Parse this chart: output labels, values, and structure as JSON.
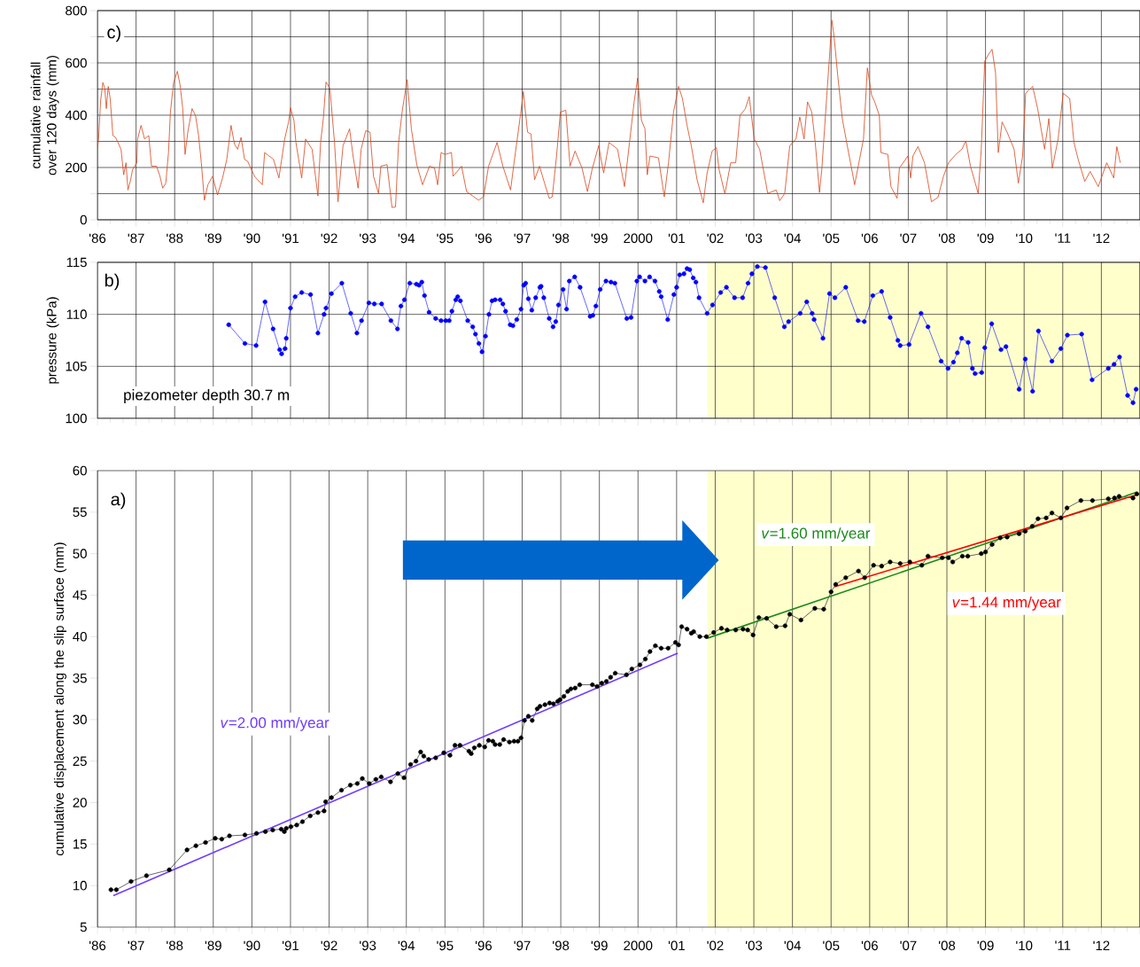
{
  "chart_data": [
    {
      "type": "line",
      "ylabel": "cumulative rainfall over 120 days (mm)",
      "annotations": [
        "c)"
      ],
      "grid": true,
      "xlim": [
        1986,
        2013
      ],
      "ylim": [
        0,
        800
      ],
      "yticks": [
        0,
        {
          "value": 100,
          "label": null
        },
        200,
        {
          "value": 300,
          "label": null
        },
        400,
        {
          "value": 500,
          "label": null
        },
        600,
        {
          "value": 700,
          "label": null
        },
        800
      ],
      "xticks": [
        {
          "value": 1986,
          "label": "'86"
        },
        {
          "value": 1987,
          "label": "'87"
        },
        {
          "value": 1988,
          "label": "'88"
        },
        {
          "value": 1989,
          "label": "'89"
        },
        {
          "value": 1990,
          "label": "'90"
        },
        {
          "value": 1991,
          "label": "'91"
        },
        {
          "value": 1992,
          "label": "'92"
        },
        {
          "value": 1993,
          "label": "'93"
        },
        {
          "value": 1994,
          "label": "'94"
        },
        {
          "value": 1995,
          "label": "'95"
        },
        {
          "value": 1996,
          "label": "'96"
        },
        {
          "value": 1997,
          "label": "'97"
        },
        {
          "value": 1998,
          "label": "'98"
        },
        {
          "value": 1999,
          "label": "'99"
        },
        {
          "value": 2000,
          "label": "2000"
        },
        {
          "value": 2001,
          "label": "'01"
        },
        {
          "value": 2002,
          "label": "'02"
        },
        {
          "value": 2003,
          "label": "'03"
        },
        {
          "value": 2004,
          "label": "'04"
        },
        {
          "value": 2005,
          "label": "'05"
        },
        {
          "value": 2006,
          "label": "'06"
        },
        {
          "value": 2007,
          "label": "'07"
        },
        {
          "value": 2008,
          "label": "'08"
        },
        {
          "value": 2009,
          "label": "'09"
        },
        {
          "value": 2010,
          "label": "'10"
        },
        {
          "value": 2011,
          "label": "'11"
        },
        {
          "value": 2012,
          "label": "'12"
        },
        {
          "value": 2013,
          "label": null
        }
      ],
      "series": [
        {
          "color": "#d9441a",
          "x": [
            1986.0,
            1986.03,
            1986.08,
            1986.14,
            1986.19,
            1986.23,
            1986.28,
            1986.33,
            1986.4,
            1986.47,
            1986.53,
            1986.61,
            1986.68,
            1986.74,
            1986.79,
            1986.86,
            1986.91,
            1987.02,
            1987.04,
            1987.13,
            1987.22,
            1987.33,
            1987.4,
            1987.53,
            1987.62,
            1987.69,
            1987.77,
            1987.84,
            1987.89,
            1987.97,
            1988.07,
            1988.14,
            1988.21,
            1988.27,
            1988.34,
            1988.45,
            1988.54,
            1988.62,
            1988.69,
            1988.77,
            1988.86,
            1988.98,
            1989.11,
            1989.24,
            1989.35,
            1989.46,
            1989.55,
            1989.63,
            1989.72,
            1989.81,
            1989.89,
            1990.07,
            1990.27,
            1990.33,
            1990.56,
            1990.7,
            1990.85,
            1990.95,
            1991.0,
            1991.09,
            1991.14,
            1991.29,
            1991.39,
            1991.56,
            1991.71,
            1991.78,
            1991.85,
            1991.92,
            1992.02,
            1992.14,
            1992.23,
            1992.36,
            1992.53,
            1992.62,
            1992.75,
            1992.83,
            1992.95,
            1993.06,
            1993.15,
            1993.28,
            1993.34,
            1993.5,
            1993.63,
            1993.72,
            1993.8,
            1993.89,
            1994.02,
            1994.13,
            1994.27,
            1994.42,
            1994.6,
            1994.73,
            1994.81,
            1994.9,
            1995.0,
            1995.17,
            1995.21,
            1995.43,
            1995.56,
            1995.87,
            1996.0,
            1996.13,
            1996.35,
            1996.5,
            1996.7,
            1996.79,
            1996.96,
            1997.03,
            1997.14,
            1997.23,
            1997.32,
            1997.45,
            1997.58,
            1997.7,
            1997.78,
            1997.89,
            1997.99,
            1998.13,
            1998.24,
            1998.37,
            1998.55,
            1998.69,
            1998.81,
            1998.98,
            1999.11,
            1999.25,
            1999.47,
            1999.65,
            1999.78,
            1999.9,
            1999.99,
            2000.09,
            2000.18,
            2000.24,
            2000.31,
            2000.53,
            2000.68,
            2000.79,
            2000.92,
            2001.05,
            2001.15,
            2001.27,
            2001.38,
            2001.53,
            2001.69,
            2001.79,
            2001.92,
            2002.03,
            2002.1,
            2002.25,
            2002.4,
            2002.53,
            2002.64,
            2002.78,
            2002.88,
            2003.01,
            2003.15,
            2003.36,
            2003.58,
            2003.67,
            2003.8,
            2003.93,
            2004.09,
            2004.19,
            2004.3,
            2004.39,
            2004.5,
            2004.59,
            2004.7,
            2004.76,
            2004.89,
            2004.96,
            2005.02,
            2005.08,
            2005.17,
            2005.29,
            2005.42,
            2005.52,
            2005.61,
            2005.72,
            2005.84,
            2005.94,
            2006.05,
            2006.13,
            2006.25,
            2006.29,
            2006.47,
            2006.55,
            2006.71,
            2006.77,
            2006.99,
            2007.06,
            2007.12,
            2007.25,
            2007.42,
            2007.6,
            2007.77,
            2007.91,
            2008.04,
            2008.23,
            2008.39,
            2008.49,
            2008.61,
            2008.81,
            2008.89,
            2008.98,
            2009.08,
            2009.17,
            2009.26,
            2009.33,
            2009.43,
            2009.56,
            2009.74,
            2009.85,
            2009.96,
            2010.04,
            2010.22,
            2010.35,
            2010.53,
            2010.64,
            2010.73,
            2010.88,
            2011.01,
            2011.18,
            2011.29,
            2011.4,
            2011.57,
            2011.71,
            2011.92,
            2012.14,
            2012.32,
            2012.4,
            2012.49
          ],
          "values": [
            276,
            309,
            451,
            525,
            503,
            425,
            510,
            464,
            322,
            315,
            296,
            270,
            172,
            218,
            114,
            153,
            192,
            218,
            309,
            361,
            309,
            322,
            205,
            205,
            166,
            121,
            140,
            257,
            412,
            523,
            568,
            516,
            425,
            250,
            335,
            425,
            399,
            322,
            218,
            75,
            134,
            166,
            95,
            160,
            231,
            361,
            289,
            270,
            315,
            231,
            224,
            166,
            134,
            257,
            231,
            160,
            309,
            374,
            428,
            380,
            296,
            160,
            309,
            270,
            91,
            296,
            387,
            527,
            503,
            296,
            69,
            283,
            348,
            244,
            121,
            270,
            341,
            335,
            166,
            101,
            205,
            211,
            47,
            49,
            296,
            412,
            536,
            348,
            211,
            134,
            205,
            198,
            134,
            257,
            250,
            257,
            166,
            205,
            108,
            75,
            88,
            205,
            296,
            205,
            114,
            218,
            406,
            490,
            335,
            328,
            153,
            205,
            140,
            82,
            88,
            244,
            412,
            419,
            205,
            263,
            198,
            108,
            192,
            283,
            179,
            296,
            270,
            127,
            296,
            451,
            542,
            380,
            348,
            172,
            244,
            237,
            88,
            218,
            412,
            510,
            464,
            361,
            283,
            153,
            65,
            179,
            263,
            276,
            192,
            99,
            218,
            218,
            399,
            425,
            471,
            309,
            270,
            101,
            114,
            73,
            101,
            283,
            309,
            393,
            309,
            451,
            412,
            296,
            104,
            192,
            477,
            626,
            763,
            698,
            555,
            387,
            283,
            205,
            134,
            218,
            309,
            581,
            477,
            451,
            399,
            257,
            250,
            127,
            82,
            198,
            244,
            160,
            244,
            280,
            218,
            69,
            86,
            166,
            218,
            250,
            270,
            302,
            205,
            101,
            270,
            607,
            633,
            652,
            562,
            257,
            374,
            335,
            270,
            140,
            244,
            484,
            510,
            425,
            270,
            387,
            198,
            309,
            484,
            464,
            296,
            231,
            147,
            185,
            127,
            218,
            160,
            280,
            218
          ]
        }
      ]
    },
    {
      "type": "line",
      "ylabel": "pressure (kPa)",
      "annotations": [
        "b)",
        "piezometer depth 30.7 m"
      ],
      "grid": true,
      "marker": "circle",
      "tick_labels": "y",
      "xlim": [
        1986,
        2013
      ],
      "ylim": [
        100,
        115
      ],
      "yticks": [
        100,
        105,
        110,
        115
      ],
      "bands": [
        {
          "axis": "x",
          "from": 2001.8,
          "to": 2013,
          "color": "#ffffcc"
        }
      ],
      "xticks": [
        {
          "value": 1986,
          "label": null
        },
        {
          "value": 1987,
          "label": null
        },
        {
          "value": 1988,
          "label": null
        },
        {
          "value": 1989,
          "label": null
        },
        {
          "value": 1990,
          "label": null
        },
        {
          "value": 1991,
          "label": null
        },
        {
          "value": 1992,
          "label": null
        },
        {
          "value": 1993,
          "label": null
        },
        {
          "value": 1994,
          "label": null
        },
        {
          "value": 1995,
          "label": null
        },
        {
          "value": 1996,
          "label": null
        },
        {
          "value": 1997,
          "label": null
        },
        {
          "value": 1998,
          "label": null
        },
        {
          "value": 1999,
          "label": null
        },
        {
          "value": 2000,
          "label": null
        },
        {
          "value": 2001,
          "label": null
        },
        {
          "value": 2002,
          "label": null
        },
        {
          "value": 2003,
          "label": null
        },
        {
          "value": 2004,
          "label": null
        },
        {
          "value": 2005,
          "label": null
        },
        {
          "value": 2006,
          "label": null
        },
        {
          "value": 2007,
          "label": null
        },
        {
          "value": 2008,
          "label": null
        },
        {
          "value": 2009,
          "label": null
        },
        {
          "value": 2010,
          "label": null
        },
        {
          "value": 2011,
          "label": null
        },
        {
          "value": 2012,
          "label": null
        },
        {
          "value": 2013,
          "label": null
        }
      ],
      "series": [
        {
          "color": "#0000ff",
          "x": [
            1989.4,
            1989.82,
            1990.11,
            1990.34,
            1990.55,
            1990.72,
            1990.77,
            1990.86,
            1990.89,
            1991.0,
            1991.12,
            1991.29,
            1991.52,
            1991.71,
            1991.87,
            1991.92,
            1992.06,
            1992.33,
            1992.56,
            1992.72,
            1992.84,
            1993.03,
            1993.17,
            1993.36,
            1993.6,
            1993.77,
            1993.86,
            1993.95,
            1994.09,
            1994.26,
            1994.33,
            1994.4,
            1994.47,
            1994.59,
            1994.76,
            1994.9,
            1995.02,
            1995.11,
            1995.18,
            1995.28,
            1995.33,
            1995.4,
            1995.59,
            1995.72,
            1995.79,
            1995.88,
            1995.96,
            1996.05,
            1996.14,
            1996.22,
            1996.3,
            1996.43,
            1996.5,
            1996.57,
            1996.69,
            1996.76,
            1996.86,
            1996.97,
            1997.04,
            1997.09,
            1997.16,
            1997.25,
            1997.35,
            1997.46,
            1997.49,
            1997.56,
            1997.7,
            1997.8,
            1997.87,
            1997.94,
            1998.06,
            1998.15,
            1998.22,
            1998.36,
            1998.5,
            1998.76,
            1998.83,
            1998.91,
            1999.02,
            1999.17,
            1999.3,
            1999.4,
            1999.71,
            1999.82,
            1999.97,
            2000.04,
            2000.18,
            2000.3,
            2000.44,
            2000.55,
            2000.6,
            2000.77,
            2000.93,
            2001.0,
            2001.08,
            2001.19,
            2001.27,
            2001.34,
            2001.43,
            2001.5,
            2001.58,
            2001.79,
            2001.93,
            2002.14,
            2002.29,
            2002.5,
            2002.71,
            2002.85,
            2002.95,
            2003.09,
            2003.3,
            2003.54,
            2003.79,
            2003.9,
            2004.2,
            2004.37,
            2004.51,
            2004.56,
            2004.79,
            2004.96,
            2005.1,
            2005.38,
            2005.7,
            2005.86,
            2006.08,
            2006.31,
            2006.53,
            2006.73,
            2006.79,
            2007.02,
            2007.33,
            2007.51,
            2007.85,
            2008.03,
            2008.17,
            2008.27,
            2008.38,
            2008.55,
            2008.66,
            2008.73,
            2008.9,
            2008.98,
            2009.16,
            2009.4,
            2009.53,
            2009.87,
            2010.03,
            2010.22,
            2010.37,
            2010.72,
            2010.95,
            2011.12,
            2011.49,
            2011.76,
            2012.18,
            2012.33,
            2012.47,
            2012.68,
            2012.82,
            2012.9
          ],
          "values": [
            109.0,
            107.2,
            107.0,
            111.2,
            108.6,
            106.6,
            106.2,
            106.7,
            107.7,
            110.6,
            111.7,
            112.1,
            111.9,
            108.2,
            110.0,
            110.6,
            112.0,
            113.0,
            110.1,
            108.2,
            109.4,
            111.1,
            111.0,
            111.0,
            109.4,
            108.6,
            110.8,
            111.4,
            113.0,
            112.9,
            112.8,
            113.1,
            111.8,
            110.2,
            109.6,
            109.4,
            109.4,
            109.4,
            110.3,
            111.4,
            111.7,
            111.3,
            109.4,
            108.8,
            108.1,
            107.2,
            106.4,
            107.9,
            110.0,
            111.3,
            111.4,
            111.4,
            111.0,
            110.3,
            109.0,
            108.9,
            109.5,
            110.5,
            112.8,
            113.0,
            111.5,
            110.4,
            111.6,
            112.6,
            112.7,
            111.6,
            109.6,
            108.8,
            109.3,
            110.9,
            112.4,
            110.5,
            113.2,
            113.6,
            112.6,
            109.8,
            109.9,
            110.8,
            112.4,
            113.2,
            113.1,
            113.0,
            109.6,
            109.7,
            113.2,
            113.6,
            113.2,
            113.6,
            113.2,
            112.2,
            111.7,
            109.5,
            111.9,
            112.6,
            113.8,
            113.9,
            114.4,
            114.3,
            113.5,
            113.1,
            111.6,
            110.1,
            110.9,
            112.1,
            112.6,
            111.6,
            111.6,
            113.0,
            113.9,
            114.6,
            114.5,
            111.6,
            108.8,
            109.3,
            110.1,
            111.2,
            110.1,
            109.5,
            107.7,
            112.0,
            111.6,
            112.6,
            109.4,
            109.3,
            111.8,
            112.2,
            109.7,
            107.5,
            107.0,
            107.1,
            110.1,
            108.8,
            105.5,
            104.8,
            105.4,
            106.3,
            107.7,
            107.3,
            104.8,
            104.3,
            104.4,
            106.8,
            109.1,
            106.6,
            106.9,
            102.8,
            105.7,
            102.6,
            108.4,
            105.5,
            106.7,
            108.0,
            108.1,
            103.7,
            104.8,
            105.2,
            105.9,
            102.2,
            101.5,
            102.8
          ]
        }
      ]
    },
    {
      "type": "line",
      "ylabel": "cumulative displacement along the slip surface (mm)",
      "annotations": [
        "a)"
      ],
      "grid": "x",
      "marker": "circle",
      "xlim": [
        1986,
        2013
      ],
      "ylim": [
        5,
        60
      ],
      "yticks": [
        5,
        10,
        15,
        20,
        25,
        30,
        35,
        40,
        45,
        50,
        55,
        60
      ],
      "bands": [
        {
          "axis": "x",
          "from": 2001.8,
          "to": 2013,
          "color": "#ffffcc"
        }
      ],
      "xticks": [
        {
          "value": 1986,
          "label": "'86"
        },
        {
          "value": 1987,
          "label": "'87"
        },
        {
          "value": 1988,
          "label": "'88"
        },
        {
          "value": 1989,
          "label": "'89"
        },
        {
          "value": 1990,
          "label": "'90"
        },
        {
          "value": 1991,
          "label": "'91"
        },
        {
          "value": 1992,
          "label": "'92"
        },
        {
          "value": 1993,
          "label": "'93"
        },
        {
          "value": 1994,
          "label": "'94"
        },
        {
          "value": 1995,
          "label": "'95"
        },
        {
          "value": 1996,
          "label": "'96"
        },
        {
          "value": 1997,
          "label": "'97"
        },
        {
          "value": 1998,
          "label": "'98"
        },
        {
          "value": 1999,
          "label": "'99"
        },
        {
          "value": 2000,
          "label": "2000"
        },
        {
          "value": 2001,
          "label": "'01"
        },
        {
          "value": 2002,
          "label": "'02"
        },
        {
          "value": 2003,
          "label": "'03"
        },
        {
          "value": 2004,
          "label": "'04"
        },
        {
          "value": 2005,
          "label": "'05"
        },
        {
          "value": 2006,
          "label": "'06"
        },
        {
          "value": 2007,
          "label": "'07"
        },
        {
          "value": 2008,
          "label": "'08"
        },
        {
          "value": 2009,
          "label": "'09"
        },
        {
          "value": 2010,
          "label": "'10"
        },
        {
          "value": 2011,
          "label": "'11"
        },
        {
          "value": 2012,
          "label": "'12"
        },
        {
          "value": 2013,
          "label": null
        }
      ],
      "series": [
        {
          "color": "#000000",
          "x": [
            1986.35,
            1986.49,
            1986.87,
            1987.27,
            1987.86,
            1988.32,
            1988.55,
            1988.8,
            1989.05,
            1989.22,
            1989.42,
            1989.82,
            1990.12,
            1990.35,
            1990.54,
            1990.76,
            1990.84,
            1990.89,
            1991.01,
            1991.16,
            1991.31,
            1991.51,
            1991.71,
            1991.87,
            1991.91,
            1992.06,
            1992.32,
            1992.55,
            1992.73,
            1992.86,
            1993.04,
            1993.21,
            1993.35,
            1993.59,
            1993.78,
            1993.94,
            1994.11,
            1994.25,
            1994.37,
            1994.45,
            1994.58,
            1994.76,
            1994.97,
            1995.13,
            1995.26,
            1995.39,
            1995.62,
            1995.68,
            1995.76,
            1995.89,
            1996.03,
            1996.13,
            1996.24,
            1996.3,
            1996.42,
            1996.52,
            1996.67,
            1996.79,
            1996.89,
            1996.97,
            1997.06,
            1997.16,
            1997.26,
            1997.39,
            1997.46,
            1997.59,
            1997.71,
            1997.81,
            1997.92,
            1997.98,
            1998.08,
            1998.18,
            1998.26,
            1998.37,
            1998.49,
            1998.82,
            1998.94,
            1999.06,
            1999.18,
            1999.29,
            1999.41,
            1999.7,
            1999.84,
            2000.05,
            2000.19,
            2000.31,
            2000.45,
            2000.6,
            2000.78,
            2000.97,
            2001.05,
            2001.13,
            2001.27,
            2001.38,
            2001.44,
            2001.6,
            2001.77,
            2001.96,
            2002.16,
            2002.31,
            2002.53,
            2002.72,
            2002.84,
            2002.98,
            2003.13,
            2003.33,
            2003.58,
            2003.81,
            2003.93,
            2004.22,
            2004.58,
            2004.81,
            2005.0,
            2005.12,
            2005.38,
            2005.71,
            2005.87,
            2006.1,
            2006.31,
            2006.53,
            2006.79,
            2007.04,
            2007.35,
            2007.51,
            2007.88,
            2008.04,
            2008.15,
            2008.4,
            2008.54,
            2008.89,
            2009.0,
            2009.17,
            2009.38,
            2009.56,
            2009.87,
            2010.03,
            2010.21,
            2010.36,
            2010.57,
            2010.72,
            2010.95,
            2011.11,
            2011.47,
            2011.77,
            2012.18,
            2012.34,
            2012.46,
            2012.82,
            2012.92
          ],
          "values": [
            9.5,
            9.5,
            10.5,
            11.2,
            11.9,
            14.3,
            14.8,
            15.2,
            15.7,
            15.6,
            16.0,
            16.1,
            16.3,
            16.5,
            16.7,
            16.8,
            16.5,
            16.9,
            17.1,
            17.3,
            17.7,
            18.4,
            18.8,
            19.0,
            20.1,
            20.6,
            21.5,
            22.1,
            22.3,
            22.9,
            22.3,
            22.8,
            23.1,
            22.5,
            23.5,
            23.0,
            24.6,
            25.0,
            26.1,
            25.6,
            25.2,
            25.4,
            26.0,
            25.7,
            26.9,
            26.9,
            26.2,
            25.9,
            26.6,
            26.9,
            26.7,
            27.5,
            27.4,
            27.0,
            27.0,
            27.6,
            27.3,
            27.4,
            27.4,
            27.8,
            29.9,
            30.4,
            29.9,
            31.3,
            31.6,
            31.8,
            32.0,
            31.9,
            32.2,
            32.4,
            32.8,
            33.4,
            33.7,
            33.8,
            34.2,
            34.2,
            34.0,
            34.4,
            34.6,
            35.1,
            35.6,
            35.4,
            36.1,
            36.6,
            37.3,
            38.2,
            38.9,
            38.6,
            38.6,
            39.3,
            39.0,
            41.2,
            40.9,
            40.4,
            40.6,
            40.0,
            40.0,
            40.5,
            41.0,
            40.8,
            40.8,
            40.9,
            40.8,
            40.2,
            42.3,
            42.2,
            41.2,
            41.3,
            42.7,
            42.0,
            43.4,
            43.3,
            45.4,
            46.3,
            47.1,
            47.9,
            47.1,
            48.6,
            48.5,
            49.0,
            48.8,
            49.0,
            48.6,
            49.7,
            49.5,
            49.5,
            49.0,
            49.7,
            49.7,
            50.0,
            50.2,
            51.1,
            51.9,
            52.0,
            52.4,
            52.7,
            53.3,
            54.2,
            54.3,
            54.9,
            54.3,
            55.5,
            56.4,
            56.4,
            56.6,
            56.7,
            56.9,
            56.7,
            57.2
          ]
        },
        {
          "name": "*v*=2.00 mm/year",
          "color": "#6f3cff",
          "marker": "none",
          "x": [
            1986.41,
            2001.03
          ],
          "values": [
            8.8,
            38.0
          ]
        },
        {
          "name": "*v*=1.60 mm/year",
          "color": "#1a8a1a",
          "marker": "none",
          "x": [
            2001.79,
            2012.92
          ],
          "values": [
            39.8,
            57.4
          ]
        },
        {
          "name": "*v*=1.44 mm/year",
          "color": "#ff0000",
          "marker": "none",
          "x": [
            2005.09,
            2012.92
          ],
          "values": [
            46.0,
            57.1
          ]
        }
      ]
    }
  ]
}
